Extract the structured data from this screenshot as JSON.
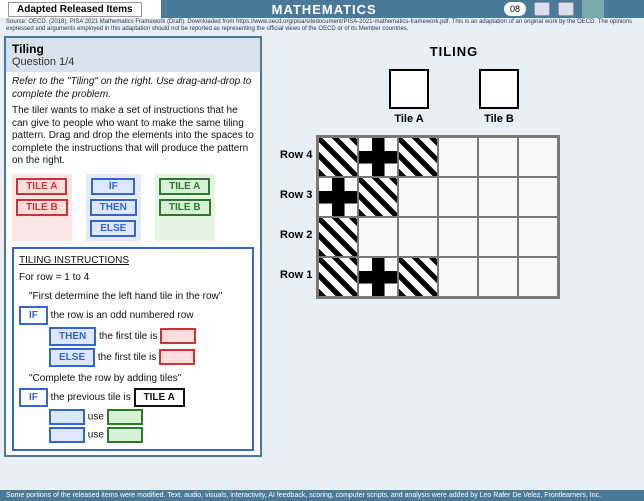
{
  "top": {
    "tab": "Adapted Released Items",
    "subject": "MATHEMATICS",
    "counter": "08"
  },
  "source": "Source: OECD. (2018). PISA 2021 Mathematics Framework (Draft). Downloaded from https://www.oecd.org/pisa/sitedocument/PISA-2021-mathematics-framework.pdf. This is an adaptation of an original work by the OECD. The opinions expressed and arguments employed in this adaptation should not be reported as representing the official views of the OECD or of its Member countries.",
  "panel": {
    "title": "Tiling",
    "qnum": "Question 1/4",
    "instr": "Refer to the \"Tiling\" on the right.  Use drag-and-drop to complete the problem.",
    "p1": "The tiler wants to make a set of instructions that he can give to people who want to make the same tiling pattern. Drag and drop the elements into the spaces to complete the instructions that will produce the pattern on the right."
  },
  "palette": {
    "red": [
      "TILE A",
      "TILE B"
    ],
    "blue": [
      "IF",
      "THEN",
      "ELSE"
    ],
    "green": [
      "TILE A",
      "TILE B"
    ]
  },
  "code": {
    "heading": "TILING INSTRUCTIONS",
    "for": "For row = 1 to 4",
    "q1": "\"First determine the left hand tile in the row\"",
    "if1": "IF",
    "if1_tail": "the row is an odd numbered row",
    "then": "THEN",
    "then_tail": "the first tile is",
    "else": "ELSE",
    "else_tail": "the first tile is",
    "q2": "\"Complete the row by adding tiles\"",
    "if2": "IF",
    "if2_tail": "the previous tile is",
    "tilea": "TILE A",
    "use": "use",
    "use2": "use"
  },
  "tiles": {
    "heading": "TILING",
    "a": "Tile A",
    "b": "Tile B"
  },
  "rows": [
    "Row 1",
    "Row 2",
    "Row 3",
    "Row 4"
  ],
  "grid": [
    [
      "ta",
      "tb",
      "ta",
      "",
      "",
      ""
    ],
    [
      "tb",
      "ta",
      "",
      "",
      "",
      ""
    ],
    [
      "ta",
      "",
      "",
      "",
      "",
      ""
    ],
    [
      "ta",
      "tb",
      "ta",
      "",
      "",
      ""
    ]
  ],
  "footer": "Some portions of the released items were modified. Text, audio, visuals, interactivity, AI feedback, scoring, computer scripts, and analysis were added by Leo Rafer De Velez, Frontlearners, Inc.",
  "colors": {
    "accent": "#4a7a99",
    "red": "#c33",
    "blue": "#36c",
    "green": "#2a7a2a",
    "bg": "#e8f0f5"
  }
}
